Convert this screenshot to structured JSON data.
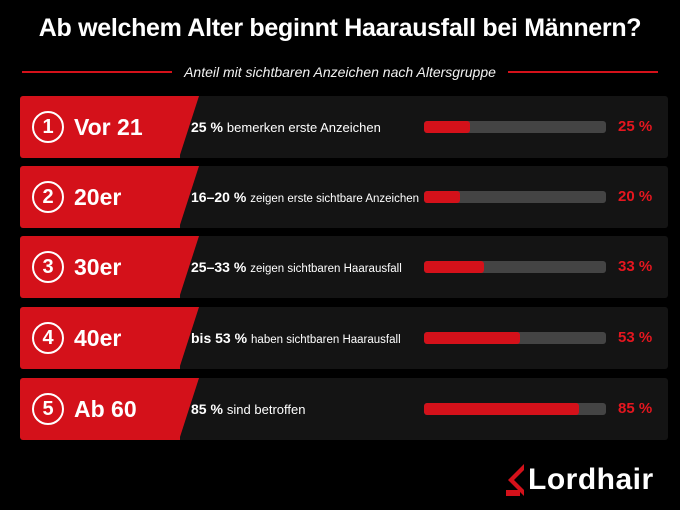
{
  "chart_data": {
    "type": "bar",
    "title": "Ab welchem Alter beginnt Haarausfall bei Männern?",
    "subtitle": "Anteil mit sichtbaren Anzeichen nach Altersgruppe",
    "categories": [
      "Vor 21",
      "20er",
      "30er",
      "40er",
      "Ab 60"
    ],
    "values": [
      25,
      20,
      33,
      53,
      85
    ],
    "value_labels": [
      "25 %",
      "20 %",
      "33 %",
      "53 %",
      "85 %"
    ],
    "ylim": [
      0,
      100
    ],
    "bar_color": "#d4111a",
    "track_color": "#444444",
    "rows": [
      {
        "number": "1",
        "age": "Vor 21",
        "value_text": "25 %",
        "desc": "bemerken erste Anzeichen",
        "value": 25,
        "pct": "25 %"
      },
      {
        "number": "2",
        "age": "20er",
        "value_text": "16–20 %",
        "desc": "zeigen erste sichtbare Anzeichen",
        "value": 20,
        "pct": "20 %"
      },
      {
        "number": "3",
        "age": "30er",
        "value_text": "25–33 %",
        "desc": "zeigen sichtbaren Haarausfall",
        "value": 33,
        "pct": "33 %"
      },
      {
        "number": "4",
        "age": "40er",
        "value_text": "bis 53 %",
        "desc": "haben sichtbaren Haarausfall",
        "value": 53,
        "pct": "53 %"
      },
      {
        "number": "5",
        "age": "Ab 60",
        "value_text": "85 %",
        "desc": "sind betroffen",
        "value": 85,
        "pct": "85 %"
      }
    ]
  },
  "brand": {
    "name": "Lordhair",
    "accent": "#d4111a"
  }
}
